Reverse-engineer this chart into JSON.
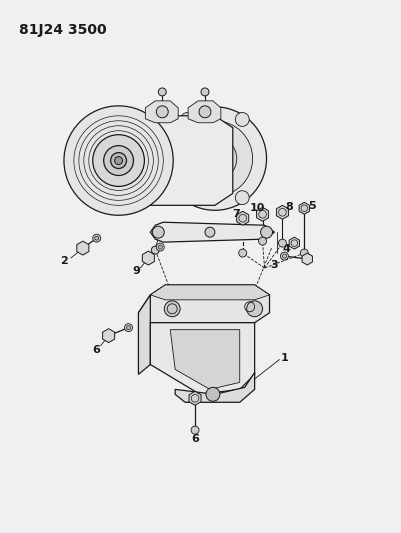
{
  "title_text": "81J24 3500",
  "bg_color": "#f0f0f0",
  "line_color": "#1a1a1a",
  "label_fontsize": 7.5,
  "title_fontsize": 10
}
